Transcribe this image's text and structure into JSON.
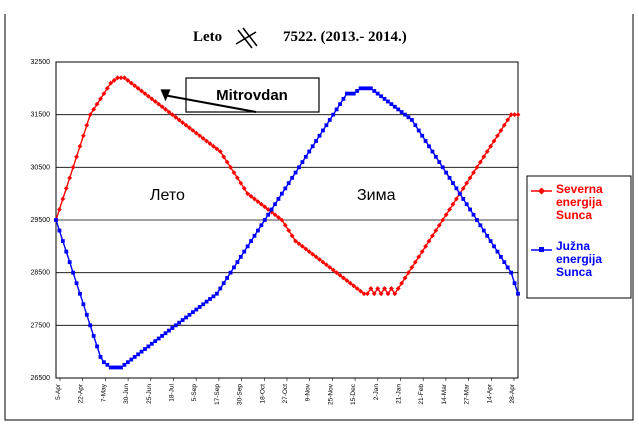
{
  "chart_data": {
    "type": "line",
    "title_left": "Leto",
    "title_right": "7522. (2013.- 2014.)",
    "xlabel": "",
    "ylabel": "",
    "ylim": [
      26500,
      32500
    ],
    "yticks": [
      26500,
      27500,
      28500,
      29500,
      30500,
      31500,
      32500
    ],
    "grid": true,
    "legend_position": "right",
    "x_tick_labels": [
      "5-Apr",
      "22-Apr",
      "7-May",
      "30-Jun",
      "25-Jun",
      "18-Jul",
      "5-Sep",
      "17-Sep",
      "30-Sep",
      "18-Oct",
      "27-Oct",
      "9-Nov",
      "25-Nov",
      "15-Dec",
      "2-Jan",
      "21-Jan",
      "21-Feb",
      "14-Mar",
      "27-Mar",
      "14-Apr",
      "28-Apr"
    ],
    "annotations": {
      "callout": "Mitrovdan",
      "left_region": "Лето",
      "right_region": "Зима",
      "crossing_index": 32
    },
    "series": [
      {
        "name": "Severna energija Sunca",
        "color": "#ff0000",
        "marker": "diamond",
        "values": [
          29500,
          29700,
          29900,
          30100,
          30300,
          30500,
          30700,
          30900,
          31100,
          31300,
          31500,
          31600,
          31700,
          31800,
          31900,
          32000,
          32100,
          32150,
          32200,
          32200,
          32200,
          32150,
          32100,
          32050,
          32000,
          31950,
          31900,
          31850,
          31800,
          31750,
          31700,
          31650,
          31600,
          31550,
          31500,
          31450,
          31400,
          31350,
          31300,
          31250,
          31200,
          31150,
          31100,
          31050,
          31000,
          30950,
          30900,
          30850,
          30800,
          30700,
          30600,
          30500,
          30400,
          30300,
          30200,
          30100,
          30000,
          29950,
          29900,
          29850,
          29800,
          29750,
          29700,
          29650,
          29600,
          29550,
          29500,
          29400,
          29300,
          29200,
          29100,
          29050,
          29000,
          28950,
          28900,
          28850,
          28800,
          28750,
          28700,
          28650,
          28600,
          28550,
          28500,
          28450,
          28400,
          28350,
          28300,
          28250,
          28200,
          28150,
          28100,
          28100,
          28200,
          28100,
          28200,
          28100,
          28200,
          28100,
          28200,
          28100,
          28200,
          28300,
          28400,
          28500,
          28600,
          28700,
          28800,
          28900,
          29000,
          29100,
          29200,
          29300,
          29400,
          29500,
          29600,
          29700,
          29800,
          29900,
          30000,
          30100,
          30200,
          30300,
          30400,
          30500,
          30600,
          30700,
          30800,
          30900,
          31000,
          31100,
          31200,
          31300,
          31400,
          31500,
          31500,
          31500
        ]
      },
      {
        "name": "Južna energija Sunca",
        "color": "#0000ff",
        "marker": "square",
        "values": [
          29500,
          29300,
          29100,
          28900,
          28700,
          28500,
          28300,
          28100,
          27900,
          27700,
          27500,
          27300,
          27100,
          26900,
          26800,
          26750,
          26700,
          26700,
          26700,
          26700,
          26750,
          26800,
          26850,
          26900,
          26950,
          27000,
          27050,
          27100,
          27150,
          27200,
          27250,
          27300,
          27350,
          27400,
          27450,
          27500,
          27550,
          27600,
          27650,
          27700,
          27750,
          27800,
          27850,
          27900,
          27950,
          28000,
          28050,
          28100,
          28200,
          28300,
          28400,
          28500,
          28600,
          28700,
          28800,
          28900,
          29000,
          29100,
          29200,
          29300,
          29400,
          29500,
          29600,
          29700,
          29800,
          29900,
          30000,
          30100,
          30200,
          30300,
          30400,
          30500,
          30600,
          30700,
          30800,
          30900,
          31000,
          31100,
          31200,
          31300,
          31400,
          31500,
          31600,
          31700,
          31800,
          31900,
          31900,
          31900,
          31950,
          32000,
          32000,
          32000,
          32000,
          31950,
          31900,
          31850,
          31800,
          31750,
          31700,
          31650,
          31600,
          31550,
          31500,
          31450,
          31400,
          31300,
          31200,
          31100,
          31000,
          30900,
          30800,
          30700,
          30600,
          30500,
          30400,
          30300,
          30200,
          30100,
          30000,
          29900,
          29800,
          29700,
          29600,
          29500,
          29400,
          29300,
          29200,
          29100,
          29000,
          28900,
          28800,
          28700,
          28600,
          28500,
          28300,
          28100
        ]
      }
    ]
  }
}
